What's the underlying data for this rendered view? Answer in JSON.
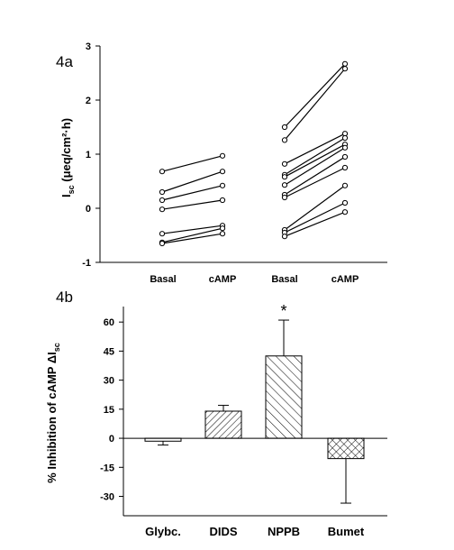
{
  "chart_data": [
    {
      "panel_label": "4a",
      "type": "line",
      "ylabel": {
        "main": "I",
        "sub": "sc",
        "rest": " (μeq/cm²·h)"
      },
      "ylim": [
        -1,
        3
      ],
      "yticks": [
        -1,
        0,
        1,
        2,
        3
      ],
      "x_groups": [
        {
          "labels": [
            "Basal",
            "cAMP"
          ]
        },
        {
          "labels": [
            "Basal",
            "cAMP"
          ]
        }
      ],
      "series": [
        {
          "group": 0,
          "values": [
            0.68,
            0.97
          ]
        },
        {
          "group": 0,
          "values": [
            0.3,
            0.68
          ]
        },
        {
          "group": 0,
          "values": [
            0.15,
            0.42
          ]
        },
        {
          "group": 0,
          "values": [
            -0.02,
            0.15
          ]
        },
        {
          "group": 0,
          "values": [
            -0.47,
            -0.32
          ]
        },
        {
          "group": 0,
          "values": [
            -0.63,
            -0.37
          ]
        },
        {
          "group": 0,
          "values": [
            -0.65,
            -0.47
          ]
        },
        {
          "group": 1,
          "values": [
            1.5,
            2.67
          ]
        },
        {
          "group": 1,
          "values": [
            1.26,
            2.58
          ]
        },
        {
          "group": 1,
          "values": [
            0.82,
            1.38
          ]
        },
        {
          "group": 1,
          "values": [
            0.62,
            1.3
          ]
        },
        {
          "group": 1,
          "values": [
            0.58,
            1.18
          ]
        },
        {
          "group": 1,
          "values": [
            0.43,
            1.12
          ]
        },
        {
          "group": 1,
          "values": [
            0.25,
            0.95
          ]
        },
        {
          "group": 1,
          "values": [
            0.2,
            0.75
          ]
        },
        {
          "group": 1,
          "values": [
            -0.4,
            0.42
          ]
        },
        {
          "group": 1,
          "values": [
            -0.45,
            0.1
          ]
        },
        {
          "group": 1,
          "values": [
            -0.52,
            -0.07
          ]
        }
      ]
    },
    {
      "panel_label": "4b",
      "type": "bar",
      "ylabel": {
        "main": "% Inhibition of cAMP ΔI",
        "sub": "sc"
      },
      "ylim": [
        -40,
        68
      ],
      "yticks": [
        -30,
        -15,
        0,
        15,
        30,
        45,
        60
      ],
      "categories": [
        "Glybc.",
        "DIDS",
        "NPPB",
        "Bumet"
      ],
      "values": [
        -1.5,
        14,
        42.5,
        -10.5
      ],
      "errors": [
        2,
        3,
        18.5,
        23
      ],
      "fills": [
        "none",
        "diag-narrow",
        "diag-wide",
        "crosshatch"
      ],
      "annotations": [
        {
          "category": "NPPB",
          "text": "*"
        }
      ]
    }
  ]
}
